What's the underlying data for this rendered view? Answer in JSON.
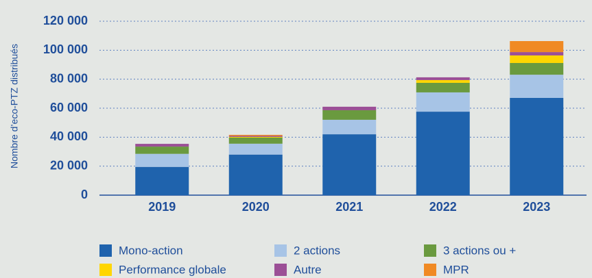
{
  "chart_data": {
    "type": "stacked_bar",
    "y_label": "Nombre d’eco-PTZ distribués",
    "categories": [
      "2019",
      "2020",
      "2021",
      "2022",
      "2023"
    ],
    "series": [
      {
        "name": "Mono-action",
        "color": "#1f63ad",
        "values": [
          19500,
          28000,
          42000,
          57600,
          67100
        ]
      },
      {
        "name": "2 actions",
        "color": "#a7c4e6",
        "values": [
          9000,
          7500,
          10000,
          13300,
          16000
        ]
      },
      {
        "name": "3 actions ou +",
        "color": "#6a9a3f",
        "values": [
          5000,
          4200,
          6600,
          6600,
          8100
        ]
      },
      {
        "name": "Performance globale",
        "color": "#ffd600",
        "values": [
          0,
          500,
          0,
          1900,
          5200
        ]
      },
      {
        "name": "Autre",
        "color": "#9b4f96",
        "values": [
          1900,
          700,
          2400,
          1900,
          2300
        ]
      },
      {
        "name": "MPR",
        "color": "#f08a24",
        "values": [
          0,
          700,
          0,
          0,
          7600
        ]
      }
    ],
    "ylim": [
      0,
      120000
    ],
    "yticks": [
      0,
      {
        "value": 20000,
        "label": "20 000"
      },
      {
        "value": 40000,
        "label": "40 000"
      },
      {
        "value": 60000,
        "label": "60 000"
      },
      {
        "value": 80000,
        "label": "80 000"
      },
      {
        "value": 100000,
        "label": "100 000"
      },
      {
        "value": 120000,
        "label": "120 000"
      }
    ],
    "grid": true
  }
}
